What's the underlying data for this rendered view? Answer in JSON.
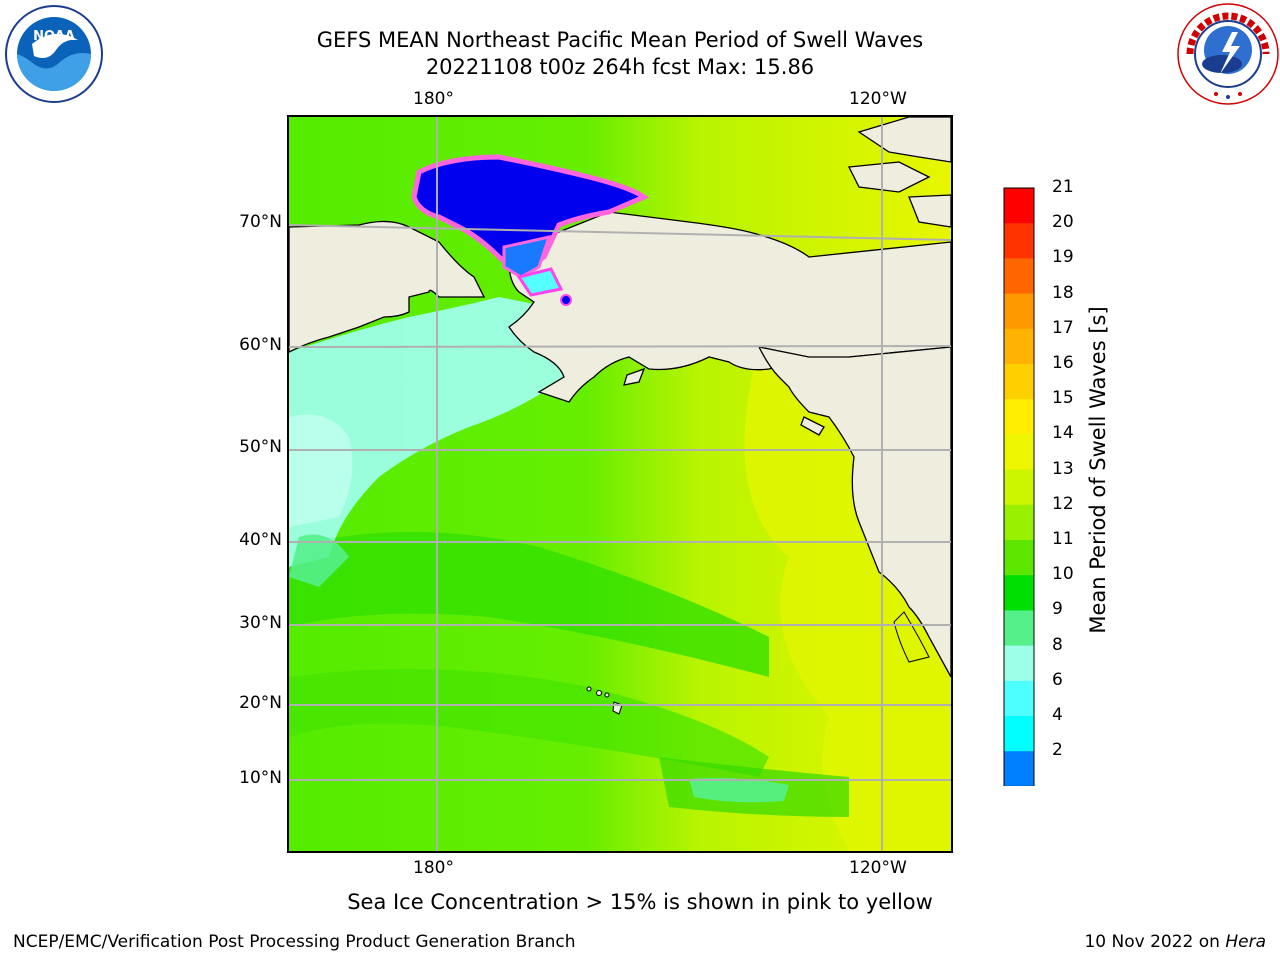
{
  "header": {
    "title_line1": "GEFS MEAN Northeast Pacific Mean Period of Swell Waves",
    "title_line2": "20221108 t00z 264h fcst   Max: 15.86"
  },
  "logos": {
    "left": "noaa-logo",
    "right": "nws-logo"
  },
  "map": {
    "lon_labels_top": [
      "180°",
      "120°W"
    ],
    "lon_labels_bottom": [
      "180°",
      "120°W"
    ],
    "lat_labels": [
      "70°N",
      "60°N",
      "50°N",
      "40°N",
      "30°N",
      "20°N",
      "10°N"
    ],
    "colors": {
      "land": "#efedde",
      "grid": "#b0b0b0",
      "ice": "#0000ff"
    }
  },
  "colorbar": {
    "title": "Mean Period of Swell Waves [s]",
    "tick_labels": [
      "21",
      "20",
      "19",
      "18",
      "17",
      "16",
      "15",
      "14",
      "13",
      "12",
      "11",
      "10",
      "9",
      "8",
      "6",
      "4",
      "2"
    ],
    "colors_top_to_bottom": [
      "#ff0000",
      "#ff3300",
      "#ff6600",
      "#ff9900",
      "#ffb300",
      "#ffd000",
      "#ffee00",
      "#eef600",
      "#ccf500",
      "#99f000",
      "#5ce600",
      "#00e000",
      "#55f08a",
      "#9effe8",
      "#4dffff",
      "#00ffff",
      "#0080ff"
    ],
    "extend_color": "#0000ff"
  },
  "footer": {
    "note": "Sea Ice Concentration > 15% is shown in pink to yellow",
    "credit": "NCEP/EMC/Verification Post Processing Product Generation Branch",
    "date": "10 Nov 2022 on ",
    "host": "Hera"
  }
}
